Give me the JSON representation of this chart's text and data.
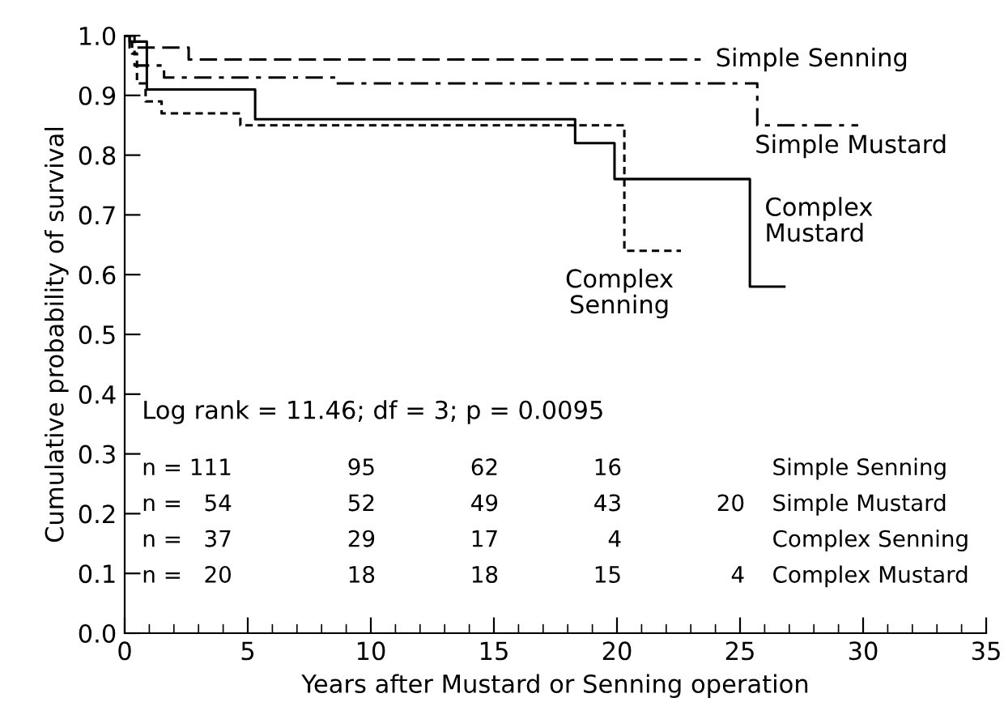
{
  "chart_data": {
    "type": "step",
    "xlabel": "Years after Mustard or Senning operation",
    "ylabel": "Cumulative probability of survival",
    "xlim": [
      0,
      35
    ],
    "xticks": [
      0,
      5,
      10,
      15,
      20,
      25,
      30,
      35
    ],
    "ylim": [
      0,
      1.0
    ],
    "yticks": [
      {
        "value": 0,
        "label": "0.0"
      },
      0.1,
      0.2,
      0.3,
      0.4,
      0.5,
      0.6,
      0.7,
      0.8,
      0.9,
      {
        "value": 1.0,
        "label": "1.0"
      }
    ],
    "grid": false,
    "legend": false,
    "marker": "none",
    "series": [
      {
        "name": "Simple Senning",
        "color": "#000000",
        "line_style": "dashed",
        "x": [
          0,
          0.2,
          2.6,
          23.4
        ],
        "values": [
          1.0,
          0.98,
          0.96,
          0.96
        ]
      },
      {
        "name": "Simple Mustard",
        "color": "#000000",
        "line_style": "dashdot",
        "x": [
          0,
          0.4,
          1.6,
          8.6,
          25.7,
          29.8
        ],
        "values": [
          1.0,
          0.95,
          0.93,
          0.92,
          0.85,
          0.85
        ]
      },
      {
        "name": "Complex Senning",
        "color": "#000000",
        "line_style": "dotted",
        "x": [
          0,
          0.3,
          0.5,
          0.85,
          1.5,
          4.7,
          20.3,
          22.6
        ],
        "values": [
          1.0,
          0.97,
          0.92,
          0.89,
          0.87,
          0.85,
          0.64,
          0.64
        ]
      },
      {
        "name": "Complex Mustard",
        "color": "#000000",
        "line_style": "solid",
        "x": [
          0,
          0.2,
          0.9,
          5.3,
          18.3,
          19.9,
          25.4,
          26.8
        ],
        "values": [
          1.0,
          0.99,
          0.91,
          0.86,
          0.82,
          0.76,
          0.58,
          0.58
        ]
      }
    ],
    "annotations": [
      "Log rank = 11.46; df = 3; p = 0.0095",
      "n = 111",
      "95",
      "62",
      "16",
      null,
      "Simple Senning",
      "n =   54",
      "52",
      "49",
      "43",
      "20",
      "Simple Mustard",
      "n =   37",
      "29",
      "17",
      "4",
      null,
      "Complex Senning",
      "n =   20",
      "18",
      "18",
      "15",
      "4",
      "Complex Mustard"
    ]
  }
}
